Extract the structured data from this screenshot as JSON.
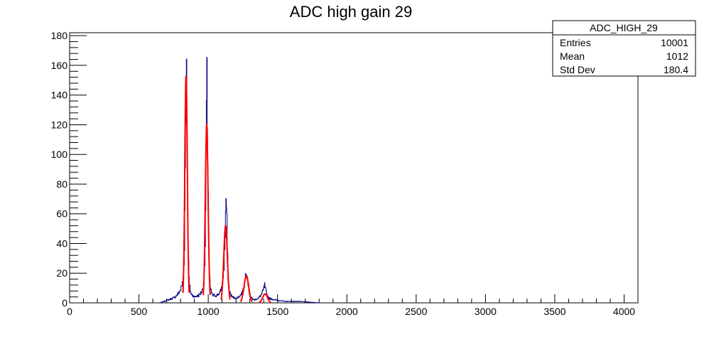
{
  "chart_data": {
    "type": "histogram",
    "title": "ADC high gain 29",
    "xlabel": "",
    "ylabel": "",
    "xlim": [
      0,
      4100
    ],
    "ylim": [
      0,
      182
    ],
    "x_ticks": [
      0,
      500,
      1000,
      1500,
      2000,
      2500,
      3000,
      3500,
      4000
    ],
    "y_ticks": [
      0,
      20,
      40,
      60,
      80,
      100,
      120,
      140,
      160,
      180
    ],
    "grid": false,
    "stats_box": {
      "name": "ADC_HIGH_29",
      "rows": [
        {
          "label": "Entries",
          "value": "10001"
        },
        {
          "label": "Mean",
          "value": "1012"
        },
        {
          "label": "Std Dev",
          "value": "180.4"
        }
      ]
    },
    "series": [
      {
        "role": "histogram",
        "color": "#00007f",
        "points": [
          [
            650,
            0
          ],
          [
            680,
            1
          ],
          [
            710,
            2
          ],
          [
            740,
            3
          ],
          [
            760,
            4
          ],
          [
            780,
            6
          ],
          [
            800,
            9
          ],
          [
            815,
            14
          ],
          [
            825,
            30
          ],
          [
            830,
            60
          ],
          [
            835,
            110
          ],
          [
            838,
            150
          ],
          [
            840,
            172
          ],
          [
            843,
            165
          ],
          [
            846,
            120
          ],
          [
            850,
            70
          ],
          [
            855,
            30
          ],
          [
            862,
            12
          ],
          [
            875,
            6
          ],
          [
            900,
            4
          ],
          [
            930,
            5
          ],
          [
            955,
            8
          ],
          [
            970,
            15
          ],
          [
            978,
            40
          ],
          [
            983,
            90
          ],
          [
            986,
            125
          ],
          [
            989,
            139
          ],
          [
            992,
            130
          ],
          [
            996,
            95
          ],
          [
            1000,
            55
          ],
          [
            1005,
            25
          ],
          [
            1012,
            10
          ],
          [
            1030,
            5
          ],
          [
            1060,
            5
          ],
          [
            1085,
            7
          ],
          [
            1100,
            12
          ],
          [
            1110,
            22
          ],
          [
            1118,
            38
          ],
          [
            1123,
            55
          ],
          [
            1127,
            71
          ],
          [
            1131,
            60
          ],
          [
            1136,
            38
          ],
          [
            1142,
            18
          ],
          [
            1150,
            8
          ],
          [
            1170,
            4
          ],
          [
            1200,
            3
          ],
          [
            1230,
            5
          ],
          [
            1250,
            8
          ],
          [
            1262,
            14
          ],
          [
            1270,
            20
          ],
          [
            1276,
            24
          ],
          [
            1282,
            18
          ],
          [
            1290,
            10
          ],
          [
            1300,
            4
          ],
          [
            1330,
            2
          ],
          [
            1360,
            3
          ],
          [
            1385,
            6
          ],
          [
            1398,
            9
          ],
          [
            1405,
            12
          ],
          [
            1412,
            9
          ],
          [
            1422,
            5
          ],
          [
            1440,
            3
          ],
          [
            1480,
            2
          ],
          [
            1550,
            1
          ],
          [
            1650,
            1
          ],
          [
            1800,
            0
          ]
        ]
      },
      {
        "role": "fit",
        "color": "#ff0000",
        "peaks": [
          {
            "mean": 840,
            "amplitude": 153,
            "sigma": 9
          },
          {
            "mean": 989,
            "amplitude": 120,
            "sigma": 10
          },
          {
            "mean": 1125,
            "amplitude": 52,
            "sigma": 13
          },
          {
            "mean": 1275,
            "amplitude": 18,
            "sigma": 17
          },
          {
            "mean": 1410,
            "amplitude": 6,
            "sigma": 17
          }
        ]
      }
    ]
  }
}
